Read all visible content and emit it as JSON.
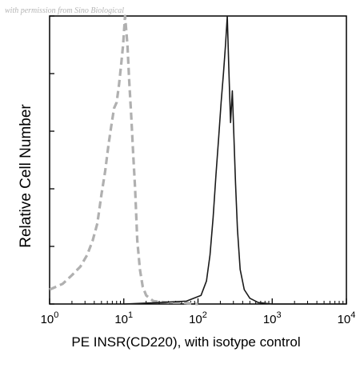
{
  "watermark": "with permission from Sino Biological",
  "chart_data": {
    "type": "line",
    "xlabel": "PE INSR(CD220), with isotype control",
    "ylabel": "Relative Cell Number",
    "xscale": "log",
    "xlim": [
      1,
      10000
    ],
    "ylim": [
      0,
      100
    ],
    "grid": false,
    "legend": "none",
    "x_ticks": [
      {
        "value": 1,
        "base": "10",
        "exp": "0"
      },
      {
        "value": 10,
        "base": "10",
        "exp": "1"
      },
      {
        "value": 100,
        "base": "10",
        "exp": "2"
      },
      {
        "value": 1000,
        "base": "10",
        "exp": "3"
      },
      {
        "value": 10000,
        "base": "10",
        "exp": "4"
      }
    ],
    "series": [
      {
        "style": "dashed",
        "color": "#b0b0b0",
        "x": [
          1.0,
          1.5,
          2.0,
          2.6,
          3.2,
          3.8,
          4.4,
          5.0,
          5.6,
          6.2,
          6.8,
          7.4,
          8.0,
          8.6,
          9.2,
          9.8,
          10.4,
          11.2,
          11.8,
          12.6,
          13.4,
          14.2,
          15.2,
          16.5,
          18.0,
          20.0,
          25.0,
          40.0,
          60.0,
          100.0
        ],
        "y": [
          5,
          7,
          10,
          13,
          17,
          22,
          28,
          38,
          46,
          55,
          62,
          68,
          70,
          76,
          83,
          90,
          100,
          90,
          78,
          65,
          52,
          40,
          22,
          12,
          6,
          3,
          1,
          0.5,
          0.5,
          0
        ]
      },
      {
        "style": "solid",
        "color": "#1a1a1a",
        "x": [
          10,
          30,
          70,
          110,
          130,
          145,
          160,
          175,
          190,
          205,
          220,
          235,
          248,
          260,
          275,
          290,
          305,
          320,
          340,
          370,
          420,
          500,
          650,
          1000,
          10000
        ],
        "y": [
          0,
          0.5,
          1,
          3,
          8,
          17,
          30,
          45,
          58,
          70,
          80,
          90,
          100,
          82,
          63,
          74,
          58,
          42,
          26,
          12,
          5,
          2,
          0.5,
          0,
          0
        ]
      }
    ]
  }
}
